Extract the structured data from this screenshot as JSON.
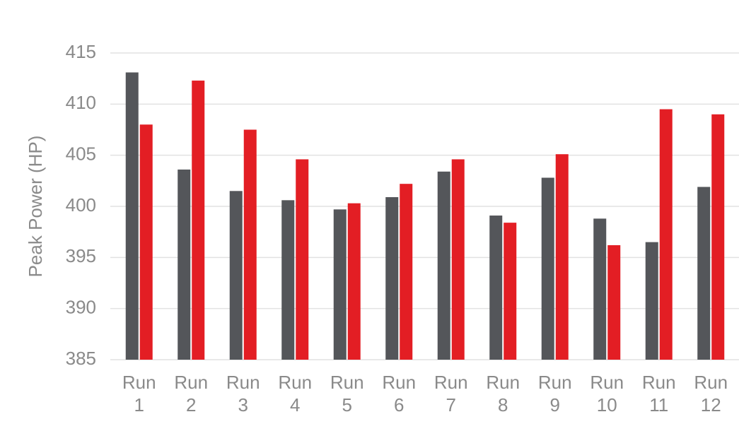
{
  "chart_data": {
    "type": "bar",
    "y_label": "Peak Power (HP)",
    "categories": [
      "Run 1",
      "Run 2",
      "Run 3",
      "Run 4",
      "Run 5",
      "Run 6",
      "Run 7",
      "Run 8",
      "Run 9",
      "Run 10",
      "Run 11",
      "Run 12"
    ],
    "series": [
      {
        "color": "#54565a",
        "values": [
          413.1,
          403.6,
          401.5,
          400.6,
          399.7,
          400.9,
          403.4,
          399.1,
          402.8,
          398.8,
          396.5,
          401.9
        ]
      },
      {
        "color": "#e31e24",
        "values": [
          408.0,
          412.3,
          407.5,
          404.6,
          400.3,
          402.2,
          404.6,
          398.4,
          405.1,
          396.2,
          409.5,
          409.0
        ]
      }
    ],
    "ylim": [
      385,
      415
    ],
    "yticks": [
      385,
      390,
      395,
      400,
      405,
      410,
      415
    ],
    "grid": true
  }
}
